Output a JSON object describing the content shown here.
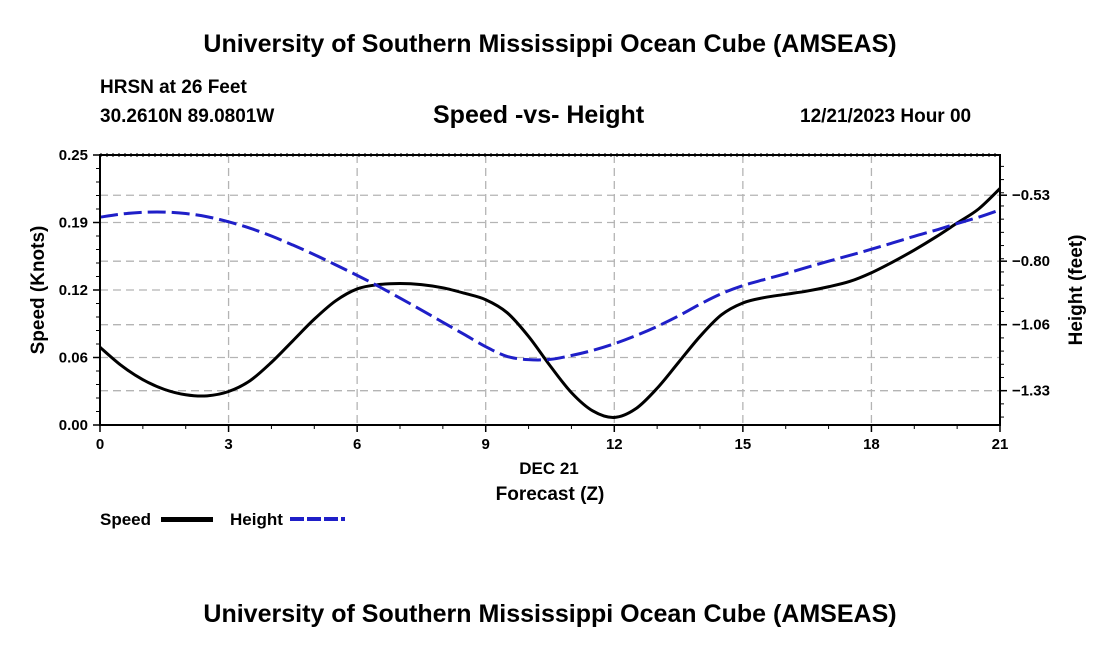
{
  "header": {
    "title": "University of Southern Mississippi Ocean Cube (AMSEAS)",
    "station": "HRSN at 26 Feet",
    "coords": "30.2610N  89.0801W",
    "subtitle": "Speed -vs- Height",
    "datetime": "12/21/2023 Hour 00"
  },
  "footer": {
    "title": "University of Southern Mississippi Ocean Cube (AMSEAS)"
  },
  "legend": {
    "speed_label": "Speed",
    "height_label": "Height"
  },
  "colors": {
    "speed": "#000000",
    "height": "#1f1fc8",
    "grid": "#b4b4b4"
  },
  "chart_data": {
    "type": "line",
    "title": "Speed -vs- Height",
    "xlabel_date": "DEC 21",
    "xlabel": "Forecast (Z)",
    "ylabel": "Speed (Knots)",
    "y2label": "Height (feet)",
    "xlim": [
      0,
      21
    ],
    "ylim": [
      0,
      0.25
    ],
    "y2lim": [
      -1.4705,
      -0.3654
    ],
    "x_ticks": [
      0,
      3,
      6,
      9,
      12,
      15,
      18,
      21
    ],
    "x_tick_labels": [
      "0",
      "3",
      "6",
      "9",
      "12",
      "15",
      "18",
      "21"
    ],
    "y_ticks": [
      0,
      0.0625,
      0.125,
      0.1875,
      0.25
    ],
    "y_tick_labels": [
      "0.00",
      "0.06",
      "0.12",
      "0.19",
      "0.25"
    ],
    "y2_ticks": [
      -1.33,
      -1.06,
      -0.8,
      -0.53
    ],
    "y2_tick_labels": [
      "-1.33",
      "-1.06",
      "-0.80",
      "-0.53"
    ],
    "legend_position": "bottom-left",
    "series": [
      {
        "name": "Speed",
        "axis": "left",
        "style": "solid",
        "x": [
          0,
          0.5,
          1,
          1.5,
          2,
          2.5,
          3,
          3.5,
          4,
          4.5,
          5,
          5.5,
          6,
          6.5,
          7,
          7.5,
          8,
          8.5,
          9,
          9.5,
          10,
          10.5,
          11,
          11.5,
          12,
          12.5,
          13,
          13.5,
          14,
          14.5,
          15,
          15.5,
          16,
          16.5,
          17,
          17.5,
          18,
          18.5,
          19,
          19.5,
          20,
          20.5,
          21
        ],
        "values": [
          0.072,
          0.055,
          0.042,
          0.033,
          0.028,
          0.027,
          0.031,
          0.041,
          0.058,
          0.078,
          0.098,
          0.115,
          0.126,
          0.13,
          0.131,
          0.13,
          0.127,
          0.122,
          0.116,
          0.104,
          0.082,
          0.055,
          0.03,
          0.013,
          0.007,
          0.015,
          0.034,
          0.058,
          0.082,
          0.102,
          0.113,
          0.118,
          0.121,
          0.124,
          0.128,
          0.133,
          0.141,
          0.151,
          0.162,
          0.174,
          0.187,
          0.2,
          0.219
        ]
      },
      {
        "name": "Height",
        "axis": "right",
        "style": "dashed",
        "x": [
          0,
          0.5,
          1,
          1.5,
          2,
          2.5,
          3,
          3.5,
          4,
          4.5,
          5,
          5.5,
          6,
          6.5,
          7,
          7.5,
          8,
          8.5,
          9,
          9.5,
          10,
          10.5,
          11,
          11.5,
          12,
          12.5,
          13,
          13.5,
          14,
          14.5,
          15,
          15.5,
          16,
          16.5,
          17,
          17.5,
          18,
          18.5,
          19,
          19.5,
          20,
          20.5,
          21
        ],
        "values": [
          -0.62,
          -0.607,
          -0.6,
          -0.599,
          -0.605,
          -0.618,
          -0.639,
          -0.665,
          -0.697,
          -0.734,
          -0.773,
          -0.815,
          -0.858,
          -0.903,
          -0.951,
          -1.0,
          -1.05,
          -1.1,
          -1.15,
          -1.19,
          -1.203,
          -1.202,
          -1.186,
          -1.165,
          -1.138,
          -1.105,
          -1.067,
          -1.024,
          -0.976,
          -0.933,
          -0.9,
          -0.875,
          -0.851,
          -0.825,
          -0.8,
          -0.776,
          -0.751,
          -0.725,
          -0.698,
          -0.673,
          -0.646,
          -0.62,
          -0.59
        ]
      }
    ]
  }
}
